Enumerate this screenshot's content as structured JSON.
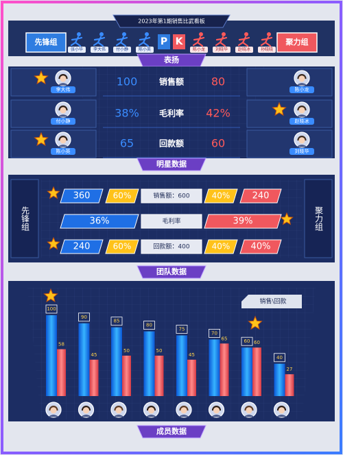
{
  "header": {
    "title": "2023年第1期销售比武看板",
    "left_team": "先锋组",
    "right_team": "聚力组",
    "left_members": [
      "张小华",
      "李大伟",
      "付小静",
      "陈小英"
    ],
    "right_members": [
      "陈小龙",
      "刘晓华",
      "赵晓冰",
      "孙晓晓"
    ],
    "pk": [
      "P",
      "K"
    ]
  },
  "praise": {
    "tab": "表扬"
  },
  "star": {
    "tab": "明星数据",
    "rows": [
      {
        "left": "李大伟",
        "left_value": "100",
        "metric": "销售额",
        "right_value": "80",
        "right": "陈小龙"
      },
      {
        "left": "付小静",
        "left_value": "38%",
        "metric": "毛利率",
        "right_value": "42%",
        "right": "赵晓冰"
      },
      {
        "left": "陈小英",
        "left_value": "65",
        "metric": "回款额",
        "right_value": "60",
        "right": "刘晓华"
      }
    ]
  },
  "team": {
    "tab": "团队数据",
    "left": "先锋组",
    "right": "聚力组",
    "rows": [
      {
        "left": "360",
        "left_pct": "60%",
        "label": "销售额：600",
        "right_pct": "40%",
        "right": "240"
      },
      {
        "left": "36%",
        "label": "毛利率",
        "right": "39%"
      },
      {
        "left": "240",
        "left_pct": "60%",
        "label": "回款额：400",
        "right_pct": "40%",
        "right": "40%"
      }
    ]
  },
  "chart_data": {
    "type": "bar",
    "title": "成员数据",
    "legend": "销售\\回款",
    "series": [
      {
        "color": "#1e8fff",
        "values": [
          100,
          90,
          85,
          80,
          75,
          70,
          60,
          40
        ]
      },
      {
        "color": "#f0585e",
        "values": [
          58,
          45,
          50,
          50,
          45,
          65,
          60,
          27
        ]
      }
    ]
  }
}
